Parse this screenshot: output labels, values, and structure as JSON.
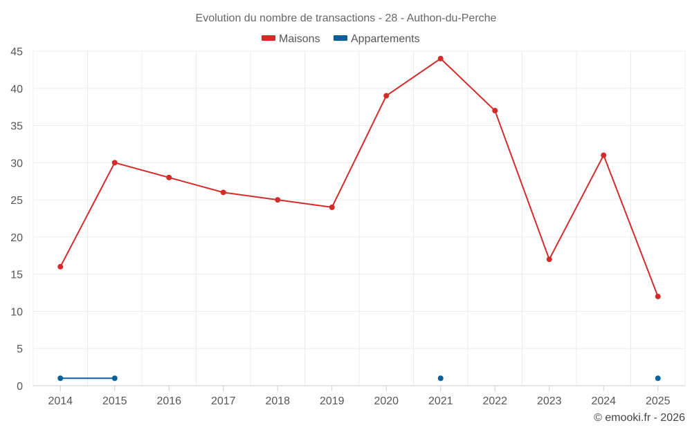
{
  "chart_data": {
    "type": "line",
    "title": "Evolution du nombre de transactions - 28 - Authon-du-Perche",
    "categories": [
      "2014",
      "2015",
      "2016",
      "2017",
      "2018",
      "2019",
      "2020",
      "2021",
      "2022",
      "2023",
      "2024",
      "2025"
    ],
    "series": [
      {
        "name": "Maisons",
        "color": "#d32a2a",
        "values": [
          16,
          30,
          28,
          26,
          25,
          24,
          39,
          44,
          37,
          17,
          31,
          12
        ]
      },
      {
        "name": "Appartements",
        "color": "#0b6099",
        "values": [
          1,
          1,
          null,
          null,
          null,
          null,
          null,
          1,
          null,
          null,
          null,
          1
        ]
      }
    ],
    "yticks": [
      "0",
      "5",
      "10",
      "15",
      "20",
      "25",
      "30",
      "35",
      "40",
      "45"
    ],
    "ylim": [
      0,
      45
    ],
    "xlabel": "",
    "ylabel": "",
    "legend_position": "top-center",
    "grid": true
  },
  "credit": "© emooki.fr - 2026",
  "colors": {
    "grid": "#ececec",
    "axis": "#cccccc"
  }
}
